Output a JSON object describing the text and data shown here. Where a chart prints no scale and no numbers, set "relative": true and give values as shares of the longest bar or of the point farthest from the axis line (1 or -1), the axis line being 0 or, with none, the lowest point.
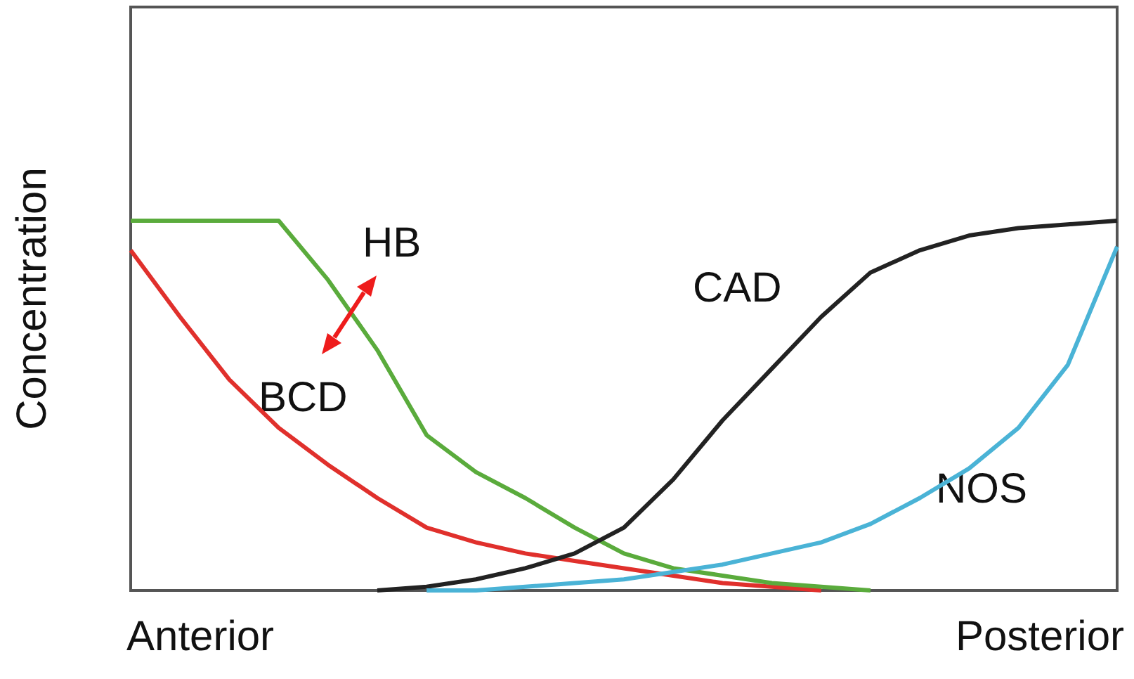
{
  "chart_data": {
    "type": "line",
    "relative": true,
    "ylabel": "Concentration",
    "annotations": [
      "Anterior",
      "Posterior"
    ],
    "categories": [
      null,
      null,
      null,
      null,
      null,
      null,
      null,
      null,
      null,
      null,
      null,
      null,
      null,
      null,
      null,
      null,
      null,
      null,
      null,
      null,
      null
    ],
    "series": [
      {
        "name": "BCD",
        "color": "#e0302c",
        "values": [
          0.92,
          0.74,
          0.57,
          0.44,
          0.34,
          0.25,
          0.17,
          0.13,
          0.1,
          0.08,
          0.06,
          0.04,
          0.02,
          0.01,
          0,
          null,
          null,
          null,
          null,
          null,
          null
        ]
      },
      {
        "name": "HB",
        "color": "#5aab3c",
        "values": [
          1,
          1,
          1,
          1,
          0.84,
          0.65,
          0.42,
          0.32,
          0.25,
          0.17,
          0.1,
          0.06,
          0.04,
          0.02,
          0.01,
          0,
          null,
          null,
          null,
          null,
          null
        ]
      },
      {
        "name": "CAD",
        "color": "#222222",
        "values": [
          null,
          null,
          null,
          null,
          null,
          0,
          0.01,
          0.03,
          0.06,
          0.1,
          0.17,
          0.3,
          0.46,
          0.6,
          0.74,
          0.86,
          0.92,
          0.96,
          0.98,
          0.99,
          1
        ]
      },
      {
        "name": "NOS",
        "color": "#4ab3d6",
        "values": [
          null,
          null,
          null,
          null,
          null,
          null,
          0,
          0,
          0.01,
          0.02,
          0.03,
          0.05,
          0.07,
          0.1,
          0.13,
          0.18,
          0.25,
          0.33,
          0.44,
          0.61,
          0.93
        ]
      }
    ],
    "grid": false,
    "marker": "none"
  }
}
